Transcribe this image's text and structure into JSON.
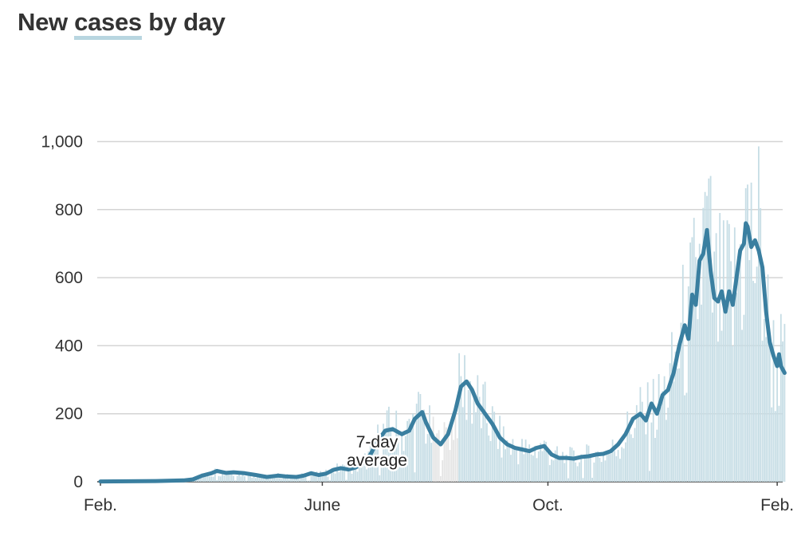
{
  "title": {
    "pre": "New",
    "highlight": "cases",
    "post": "by day"
  },
  "colors": {
    "bar": "#c6dde5",
    "bar_gap": "#e4e4e4",
    "line": "#3a7fa0",
    "grid": "#d4d4d4",
    "baseline": "#444444",
    "title_highlight": "#b8d6e0"
  },
  "chart_data": {
    "type": "bar",
    "title": "New cases by day",
    "x_range": [
      "Feb.",
      "Feb."
    ],
    "days": 366,
    "ylim": [
      0,
      1000
    ],
    "yticks": [
      0,
      200,
      400,
      600,
      800,
      1000
    ],
    "ytick_labels": [
      "0",
      "200",
      "400",
      "600",
      "800",
      "1,000"
    ],
    "xticks": [
      {
        "label": "Feb.",
        "day": 0
      },
      {
        "label": "June",
        "day": 120
      },
      {
        "label": "Oct.",
        "day": 242
      },
      {
        "label": "Feb.",
        "day": 366
      }
    ],
    "grid": true,
    "gray_period_days": [
      180,
      193
    ],
    "annotation": {
      "line1": "7-day",
      "line2": "average"
    },
    "series": [
      {
        "name": "7-day average",
        "type": "line",
        "points": [
          [
            0,
            1
          ],
          [
            30,
            2
          ],
          [
            45,
            4
          ],
          [
            50,
            7
          ],
          [
            55,
            18
          ],
          [
            60,
            25
          ],
          [
            63,
            32
          ],
          [
            68,
            26
          ],
          [
            72,
            28
          ],
          [
            78,
            25
          ],
          [
            84,
            20
          ],
          [
            90,
            14
          ],
          [
            96,
            18
          ],
          [
            100,
            16
          ],
          [
            106,
            14
          ],
          [
            110,
            18
          ],
          [
            114,
            25
          ],
          [
            118,
            20
          ],
          [
            122,
            24
          ],
          [
            126,
            35
          ],
          [
            130,
            40
          ],
          [
            134,
            36
          ],
          [
            138,
            42
          ],
          [
            142,
            55
          ],
          [
            146,
            80
          ],
          [
            150,
            120
          ],
          [
            154,
            150
          ],
          [
            158,
            155
          ],
          [
            163,
            140
          ],
          [
            167,
            150
          ],
          [
            170,
            185
          ],
          [
            174,
            205
          ],
          [
            176,
            175
          ],
          [
            180,
            130
          ],
          [
            184,
            110
          ],
          [
            188,
            140
          ],
          [
            192,
            210
          ],
          [
            195,
            280
          ],
          [
            198,
            295
          ],
          [
            201,
            270
          ],
          [
            204,
            230
          ],
          [
            208,
            200
          ],
          [
            212,
            170
          ],
          [
            216,
            130
          ],
          [
            220,
            110
          ],
          [
            224,
            100
          ],
          [
            228,
            95
          ],
          [
            232,
            90
          ],
          [
            236,
            100
          ],
          [
            240,
            105
          ],
          [
            244,
            80
          ],
          [
            248,
            70
          ],
          [
            252,
            70
          ],
          [
            256,
            68
          ],
          [
            260,
            73
          ],
          [
            264,
            75
          ],
          [
            268,
            80
          ],
          [
            272,
            82
          ],
          [
            276,
            90
          ],
          [
            280,
            110
          ],
          [
            284,
            140
          ],
          [
            288,
            185
          ],
          [
            292,
            200
          ],
          [
            295,
            180
          ],
          [
            298,
            230
          ],
          [
            301,
            200
          ],
          [
            304,
            255
          ],
          [
            307,
            270
          ],
          [
            310,
            320
          ],
          [
            313,
            400
          ],
          [
            316,
            460
          ],
          [
            318,
            420
          ],
          [
            320,
            550
          ],
          [
            322,
            520
          ],
          [
            324,
            650
          ],
          [
            326,
            670
          ],
          [
            328,
            740
          ],
          [
            330,
            620
          ],
          [
            332,
            540
          ],
          [
            334,
            530
          ],
          [
            336,
            560
          ],
          [
            338,
            500
          ],
          [
            340,
            560
          ],
          [
            342,
            520
          ],
          [
            344,
            600
          ],
          [
            346,
            680
          ],
          [
            348,
            700
          ],
          [
            349,
            760
          ],
          [
            350,
            750
          ],
          [
            352,
            690
          ],
          [
            354,
            710
          ],
          [
            356,
            680
          ],
          [
            358,
            630
          ],
          [
            360,
            500
          ],
          [
            362,
            410
          ],
          [
            364,
            370
          ],
          [
            366,
            340
          ],
          [
            367,
            375
          ],
          [
            368,
            340
          ],
          [
            370,
            320
          ]
        ]
      }
    ]
  }
}
